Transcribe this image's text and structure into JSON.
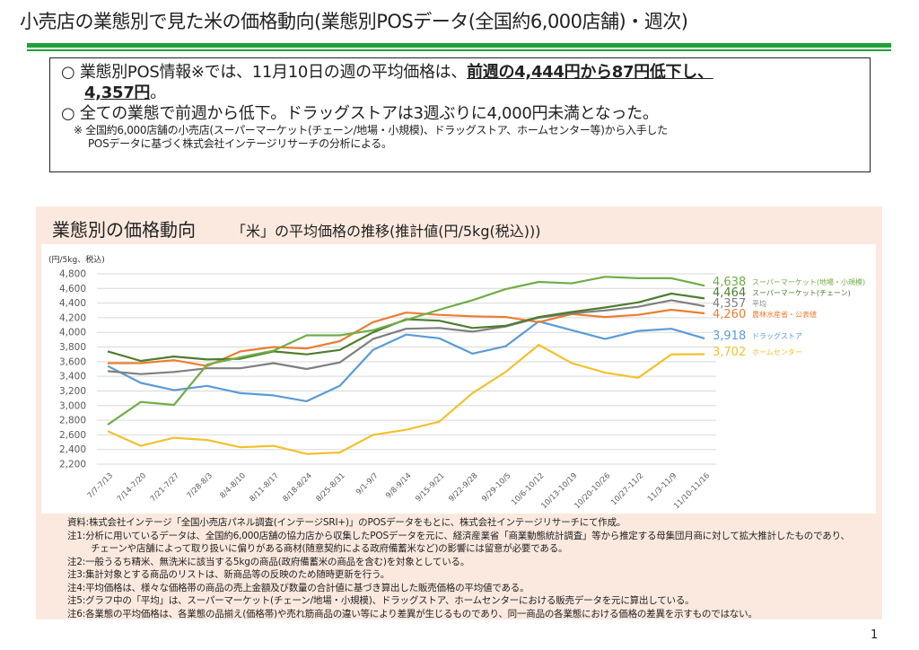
{
  "header": {
    "title": "小売店の業態別で見た米の価格動向(業態別POSデータ(全国約6,000店舗)・週次)",
    "accent_color": "#21a038"
  },
  "summary": {
    "line1_prefix": "○  業態別POS情報※では、11月10日の週の平均価格は、",
    "line1_emphasis": "前週の4,444円から87円低下し、",
    "line1b_emphasis": "4,357円",
    "line1b_suffix": "。",
    "line2": "○  全ての業態で前週から低下。ドラッグストアは3週ぶりに4,000円未満となった。",
    "note1": "※  全国約6,000店舗の小売店(スーパーマーケット(チェーン/地場・小規模)、ドラッグストア、ホームセンター等)から入手した",
    "note2": "POSデータに基づく株式会社インテージリサーチの分析による。"
  },
  "panel": {
    "title": "業態別の価格動向",
    "subtitle": "「米」の平均価格の推移(推計値(円/5kg(税込)))",
    "background": "#fbe9df"
  },
  "chart_data": {
    "type": "line",
    "title": "「米」の平均価格の推移(推計値(円/5kg(税込)))",
    "ylabel": "(円/5kg、税込)",
    "xlabel": "",
    "ylim": [
      2200,
      4800
    ],
    "ytick_step": 200,
    "grid": true,
    "legend": "right (end-of-line labels)",
    "categories": [
      "7/7-7/13",
      "7/14-7/20",
      "7/21-7/27",
      "7/28-8/3",
      "8/4-8/10",
      "8/11-8/17",
      "8/18-8/24",
      "8/25-8/31",
      "9/1-9/7",
      "9/8-9/14",
      "9/15-9/21",
      "9/22-9/28",
      "9/29-10/5",
      "10/6-10/12",
      "10/13-10/19",
      "10/20-10/26",
      "10/27-11/2",
      "11/3-11/9",
      "11/10-11/16"
    ],
    "yticks": [
      "2,200",
      "2,400",
      "2,600",
      "2,800",
      "3,000",
      "3,200",
      "3,400",
      "3,600",
      "3,800",
      "4,000",
      "4,200",
      "4,400",
      "4,600",
      "4,800"
    ],
    "series": [
      {
        "name": "スーパーマーケット(地場・小規模)",
        "color": "#70ad47",
        "last_label": "4,638",
        "values": [
          2740,
          3050,
          3010,
          3560,
          3660,
          3750,
          3960,
          3960,
          4030,
          4170,
          4310,
          4440,
          4590,
          4690,
          4670,
          4760,
          4740,
          4740,
          4638
        ]
      },
      {
        "name": "スーパーマーケット(チェーン)",
        "color": "#4e7d2e",
        "last_label": "4,464",
        "values": [
          3740,
          3610,
          3670,
          3630,
          3640,
          3740,
          3700,
          3760,
          4000,
          4180,
          4160,
          4060,
          4090,
          4210,
          4280,
          4340,
          4410,
          4530,
          4464
        ]
      },
      {
        "name": "平均",
        "color": "#7f7f7f",
        "last_label": "4,357",
        "values": [
          3470,
          3430,
          3460,
          3510,
          3510,
          3580,
          3500,
          3590,
          3910,
          4050,
          4060,
          4010,
          4080,
          4200,
          4260,
          4300,
          4350,
          4440,
          4357
        ]
      },
      {
        "name": "農林水産省・公表値",
        "color": "#ed7d31",
        "last_label": "4,260",
        "values": [
          3580,
          3580,
          3620,
          3540,
          3740,
          3800,
          3780,
          3880,
          4140,
          4270,
          4240,
          4220,
          4210,
          4140,
          4250,
          4210,
          4240,
          4310,
          4260
        ]
      },
      {
        "name": "ドラッグストア",
        "color": "#5b9bd5",
        "last_label": "3,918",
        "values": [
          3540,
          3310,
          3210,
          3270,
          3170,
          3140,
          3060,
          3270,
          3760,
          3970,
          3920,
          3710,
          3810,
          4150,
          4030,
          3910,
          4020,
          4050,
          3918
        ]
      },
      {
        "name": "ホームセンター",
        "color": "#f2c12e",
        "last_label": "3,702",
        "values": [
          2650,
          2450,
          2560,
          2530,
          2430,
          2450,
          2340,
          2360,
          2600,
          2670,
          2780,
          3170,
          3460,
          3830,
          3580,
          3450,
          3380,
          3700,
          3702
        ]
      }
    ]
  },
  "notes": [
    "資料:株式会社インテージ「全国小売店パネル調査(インテージSRI+)」のPOSデータをもとに、株式会社インテージリサーチにて作成。",
    "注1:分析に用いているデータは、全国約6,000店舗の協力店から収集したPOSデータを元に、経済産業省「商業動態統計調査」等から推定する母集団月商に対して拡大推計したものであり、",
    "チェーンや店舗によって取り扱いに偏りがある商材(随意契約による政府備蓄米など)の影響には留意が必要である。",
    "注2:一般うるち精米、無洗米に該当する5kgの商品(政府備蓄米の商品を含む)を対象としている。",
    "注3:集計対象とする商品のリストは、新商品等の反映のため随時更新を行う。",
    "注4:平均価格は、様々な価格帯の商品の売上金額及び数量の合計値に基づき算出した販売価格の平均値である。",
    "注5:グラフ中の「平均」は、スーパーマーケット(チェーン/地場・小規模)、ドラッグストア、ホームセンターにおける販売データを元に算出している。",
    "注6:各業態の平均価格は、各業態の品揃え(価格帯)や売れ筋商品の違い等により差異が生じるものであり、同一商品の各業態における価格の差異を示すものではない。"
  ],
  "page_number": "1"
}
